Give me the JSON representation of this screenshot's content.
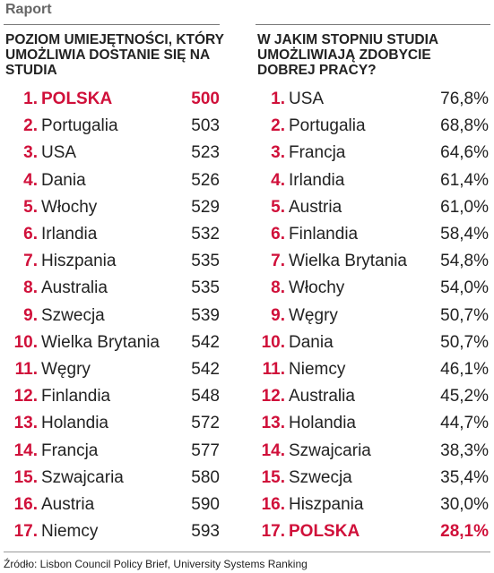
{
  "header": {
    "title": "Raport"
  },
  "left": {
    "title": "POZIOM UMIEJĘTNOŚCI, KTÓRY UMOŻLIWIA DOSTANIE SIĘ NA STUDIA",
    "highlighted_row": 0,
    "rows": [
      {
        "rank": "1.",
        "name": "POLSKA",
        "value": 500
      },
      {
        "rank": "2.",
        "name": "Portugalia",
        "value": 503
      },
      {
        "rank": "3.",
        "name": "USA",
        "value": 523
      },
      {
        "rank": "4.",
        "name": "Dania",
        "value": 526
      },
      {
        "rank": "5.",
        "name": "Włochy",
        "value": 529
      },
      {
        "rank": "6.",
        "name": "Irlandia",
        "value": 532
      },
      {
        "rank": "7.",
        "name": "Hiszpania",
        "value": 535
      },
      {
        "rank": "8.",
        "name": "Australia",
        "value": 535
      },
      {
        "rank": "9.",
        "name": "Szwecja",
        "value": 539
      },
      {
        "rank": "10.",
        "name": "Wielka Brytania",
        "value": 542
      },
      {
        "rank": "11.",
        "name": "Węgry",
        "value": 542
      },
      {
        "rank": "12.",
        "name": "Finlandia",
        "value": 548
      },
      {
        "rank": "13.",
        "name": "Holandia",
        "value": 572
      },
      {
        "rank": "14.",
        "name": "Francja",
        "value": 577
      },
      {
        "rank": "15.",
        "name": "Szwajcaria",
        "value": 580
      },
      {
        "rank": "16.",
        "name": "Austria",
        "value": 590
      },
      {
        "rank": "17.",
        "name": "Niemcy",
        "value": 593
      }
    ]
  },
  "right": {
    "title": "W JAKIM STOPNIU STUDIA UMOŻLIWIAJĄ ZDOBYCIE DOBREJ PRACY?",
    "highlighted_row": 16,
    "rows": [
      {
        "rank": "1.",
        "name": "USA",
        "value": "76,8%"
      },
      {
        "rank": "2.",
        "name": "Portugalia",
        "value": "68,8%"
      },
      {
        "rank": "3.",
        "name": "Francja",
        "value": "64,6%"
      },
      {
        "rank": "4.",
        "name": "Irlandia",
        "value": "61,4%"
      },
      {
        "rank": "5.",
        "name": "Austria",
        "value": "61,0%"
      },
      {
        "rank": "6.",
        "name": "Finlandia",
        "value": "58,4%"
      },
      {
        "rank": "7.",
        "name": "Wielka Brytania",
        "value": "54,8%"
      },
      {
        "rank": "8.",
        "name": "Włochy",
        "value": "54,0%"
      },
      {
        "rank": "9.",
        "name": "Węgry",
        "value": "50,7%"
      },
      {
        "rank": "10.",
        "name": "Dania",
        "value": "50,7%"
      },
      {
        "rank": "11.",
        "name": "Niemcy",
        "value": "46,1%"
      },
      {
        "rank": "12.",
        "name": "Australia",
        "value": "45,2%"
      },
      {
        "rank": "13.",
        "name": "Holandia",
        "value": "44,7%"
      },
      {
        "rank": "14.",
        "name": "Szwajcaria",
        "value": "38,3%"
      },
      {
        "rank": "15.",
        "name": "Szwecja",
        "value": "35,4%"
      },
      {
        "rank": "16.",
        "name": "Hiszpania",
        "value": "30,0%"
      },
      {
        "rank": "17.",
        "name": "POLSKA",
        "value": "28,1%"
      }
    ]
  },
  "source": "Źródło: Lisbon Council Policy Brief, University Systems Ranking"
}
